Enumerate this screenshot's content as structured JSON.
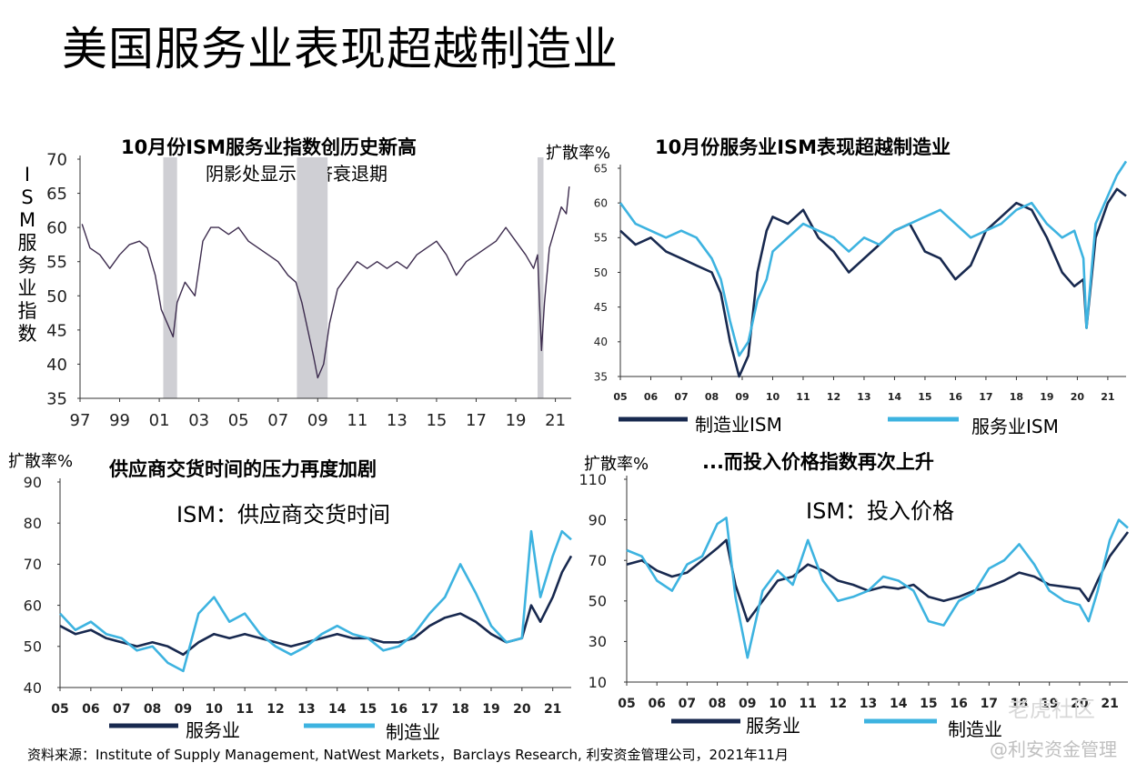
{
  "page_title": "美国服务业表现超越制造业",
  "source": "资料来源：Institute of Supply Management, NatWest Markets，Barclays Research, 利安资金管理公司，2021年11月",
  "watermark": {
    "top": "老虎社区",
    "bottom": "@利安资金管理"
  },
  "chart_data": [
    {
      "id": "c1",
      "type": "line",
      "title": "10月份ISM服务业指数创历史新高",
      "subtitle": "阴影处显示经济衰退期",
      "ylabel_chars": [
        "I",
        "S",
        "M",
        "服",
        "务",
        "业",
        "指",
        "数"
      ],
      "unit": "扩散率%",
      "ylim": [
        35,
        70
      ],
      "yticks": [
        35,
        40,
        45,
        50,
        55,
        60,
        65,
        70
      ],
      "xlim": [
        1997,
        2021.8
      ],
      "xtick_labels": [
        "97",
        "99",
        "01",
        "03",
        "05",
        "07",
        "09",
        "11",
        "13",
        "15",
        "17",
        "19",
        "21"
      ],
      "xtick_values": [
        1997,
        1999,
        2001,
        2003,
        2005,
        2007,
        2009,
        2011,
        2013,
        2015,
        2017,
        2019,
        2021
      ],
      "recessions": [
        [
          2001.2,
          2001.9
        ],
        [
          2007.95,
          2009.5
        ],
        [
          2020.1,
          2020.4
        ]
      ],
      "colors": {
        "line": "#3d2c4e",
        "shade": "#cfcfd4"
      },
      "series": [
        {
          "color": "#3d2c4e",
          "x": [
            1997.1,
            1997.5,
            1998,
            1998.5,
            1999,
            1999.5,
            2000,
            2000.4,
            2000.8,
            2001.1,
            2001.4,
            2001.7,
            2001.9,
            2002.3,
            2002.8,
            2003.2,
            2003.6,
            2004,
            2004.5,
            2005,
            2005.5,
            2006,
            2006.5,
            2007,
            2007.5,
            2007.9,
            2008.2,
            2008.5,
            2008.8,
            2009,
            2009.3,
            2009.6,
            2010,
            2010.5,
            2011,
            2011.5,
            2012,
            2012.5,
            2013,
            2013.5,
            2014,
            2014.5,
            2015,
            2015.5,
            2016,
            2016.5,
            2017,
            2017.5,
            2018,
            2018.5,
            2019,
            2019.5,
            2019.9,
            2020.1,
            2020.3,
            2020.45,
            2020.7,
            2021,
            2021.3,
            2021.55,
            2021.7
          ],
          "y": [
            60.5,
            57,
            56,
            54,
            56,
            57.5,
            58,
            57,
            53,
            48,
            46,
            44,
            49,
            52,
            50,
            58,
            60,
            60,
            59,
            60,
            58,
            57,
            56,
            55,
            53,
            52,
            49,
            45,
            41,
            38,
            40,
            46,
            51,
            53,
            55,
            54,
            55,
            54,
            55,
            54,
            56,
            57,
            58,
            56,
            53,
            55,
            56,
            57,
            58,
            60,
            58,
            56,
            54,
            56,
            42,
            49,
            57,
            60,
            63,
            62,
            66
          ]
        }
      ]
    },
    {
      "id": "c2",
      "type": "line",
      "title": "10月份服务业ISM表现超越制造业",
      "unit": "扩散率%",
      "ylim": [
        35,
        65
      ],
      "yticks": [
        35,
        40,
        45,
        50,
        55,
        60,
        65
      ],
      "xlim": [
        2005,
        2021.6
      ],
      "xtick_labels": [
        "05",
        "06",
        "07",
        "08",
        "09",
        "10",
        "11",
        "12",
        "13",
        "14",
        "15",
        "16",
        "17",
        "18",
        "19",
        "20",
        "21"
      ],
      "xtick_values": [
        2005,
        2006,
        2007,
        2008,
        2009,
        2010,
        2011,
        2012,
        2013,
        2014,
        2015,
        2016,
        2017,
        2018,
        2019,
        2020,
        2021
      ],
      "colors": {
        "manufacturing": "#18294f",
        "services": "#3db3e0"
      },
      "series": [
        {
          "name": "制造业ISM",
          "color": "#18294f",
          "x": [
            2005,
            2005.5,
            2006,
            2006.5,
            2007,
            2007.5,
            2008,
            2008.3,
            2008.6,
            2008.9,
            2009.2,
            2009.5,
            2009.8,
            2010,
            2010.5,
            2011,
            2011.5,
            2012,
            2012.5,
            2013,
            2013.5,
            2014,
            2014.5,
            2015,
            2015.5,
            2016,
            2016.5,
            2017,
            2017.5,
            2018,
            2018.5,
            2019,
            2019.5,
            2019.9,
            2020.2,
            2020.3,
            2020.6,
            2021,
            2021.3,
            2021.6
          ],
          "y": [
            56,
            54,
            55,
            53,
            52,
            51,
            50,
            47,
            40,
            35,
            38,
            50,
            56,
            58,
            57,
            59,
            55,
            53,
            50,
            52,
            54,
            56,
            57,
            53,
            52,
            49,
            51,
            56,
            58,
            60,
            59,
            55,
            50,
            48,
            49,
            42,
            55,
            60,
            62,
            61
          ]
        },
        {
          "name": "服务业ISM",
          "color": "#3db3e0",
          "x": [
            2005,
            2005.5,
            2006,
            2006.5,
            2007,
            2007.5,
            2008,
            2008.3,
            2008.6,
            2008.9,
            2009.2,
            2009.5,
            2009.8,
            2010,
            2010.5,
            2011,
            2011.5,
            2012,
            2012.5,
            2013,
            2013.5,
            2014,
            2014.5,
            2015,
            2015.5,
            2016,
            2016.5,
            2017,
            2017.5,
            2018,
            2018.5,
            2019,
            2019.5,
            2019.9,
            2020.2,
            2020.3,
            2020.6,
            2021,
            2021.3,
            2021.6
          ],
          "y": [
            60,
            57,
            56,
            55,
            56,
            55,
            52,
            49,
            43,
            38,
            40,
            46,
            49,
            53,
            55,
            57,
            56,
            55,
            53,
            55,
            54,
            56,
            57,
            58,
            59,
            57,
            55,
            56,
            57,
            59,
            60,
            57,
            55,
            56,
            52,
            42,
            57,
            61,
            64,
            66
          ]
        }
      ]
    },
    {
      "id": "c3",
      "type": "line",
      "title": "供应商交货时间的压力再度加剧",
      "subtitle": "ISM：供应商交货时间",
      "unit": "扩散率%",
      "ylim": [
        40,
        90
      ],
      "yticks": [
        40,
        50,
        60,
        70,
        80,
        90
      ],
      "xlim": [
        2005,
        2021.6
      ],
      "xtick_labels": [
        "05",
        "06",
        "07",
        "08",
        "09",
        "10",
        "11",
        "12",
        "13",
        "14",
        "15",
        "16",
        "17",
        "18",
        "19",
        "20",
        "21"
      ],
      "xtick_values": [
        2005,
        2006,
        2007,
        2008,
        2009,
        2010,
        2011,
        2012,
        2013,
        2014,
        2015,
        2016,
        2017,
        2018,
        2019,
        2020,
        2021
      ],
      "colors": {
        "services": "#18294f",
        "manufacturing": "#3db3e0"
      },
      "series": [
        {
          "name": "服务业",
          "color": "#18294f",
          "x": [
            2005,
            2005.5,
            2006,
            2006.5,
            2007,
            2007.5,
            2008,
            2008.5,
            2009,
            2009.5,
            2010,
            2010.5,
            2011,
            2011.5,
            2012,
            2012.5,
            2013,
            2013.5,
            2014,
            2014.5,
            2015,
            2015.5,
            2016,
            2016.5,
            2017,
            2017.5,
            2018,
            2018.5,
            2019,
            2019.5,
            2020,
            2020.3,
            2020.6,
            2021,
            2021.3,
            2021.6
          ],
          "y": [
            55,
            53,
            54,
            52,
            51,
            50,
            51,
            50,
            48,
            51,
            53,
            52,
            53,
            52,
            51,
            50,
            51,
            52,
            53,
            52,
            52,
            51,
            51,
            52,
            55,
            57,
            58,
            56,
            53,
            51,
            52,
            60,
            56,
            62,
            68,
            72
          ]
        },
        {
          "name": "制造业",
          "color": "#3db3e0",
          "x": [
            2005,
            2005.5,
            2006,
            2006.5,
            2007,
            2007.5,
            2008,
            2008.5,
            2009,
            2009.5,
            2010,
            2010.5,
            2011,
            2011.5,
            2012,
            2012.5,
            2013,
            2013.5,
            2014,
            2014.5,
            2015,
            2015.5,
            2016,
            2016.5,
            2017,
            2017.5,
            2018,
            2018.5,
            2019,
            2019.5,
            2020,
            2020.3,
            2020.6,
            2021,
            2021.3,
            2021.6
          ],
          "y": [
            58,
            54,
            56,
            53,
            52,
            49,
            50,
            46,
            44,
            58,
            62,
            56,
            58,
            53,
            50,
            48,
            50,
            53,
            55,
            53,
            52,
            49,
            50,
            53,
            58,
            62,
            70,
            63,
            55,
            51,
            52,
            78,
            62,
            72,
            78,
            76
          ]
        }
      ]
    },
    {
      "id": "c4",
      "type": "line",
      "title": "...而投入价格指数再次上升",
      "subtitle": "ISM：投入价格",
      "unit": "扩散率%",
      "ylim": [
        10,
        110
      ],
      "yticks": [
        10,
        30,
        50,
        70,
        90,
        110
      ],
      "xlim": [
        2005,
        2021.6
      ],
      "xtick_labels": [
        "05",
        "06",
        "07",
        "08",
        "09",
        "10",
        "11",
        "12",
        "13",
        "14",
        "15",
        "16",
        "17",
        "18",
        "19",
        "20",
        "21"
      ],
      "xtick_values": [
        2005,
        2006,
        2007,
        2008,
        2009,
        2010,
        2011,
        2012,
        2013,
        2014,
        2015,
        2016,
        2017,
        2018,
        2019,
        2020,
        2021
      ],
      "colors": {
        "services": "#18294f",
        "manufacturing": "#3db3e0"
      },
      "series": [
        {
          "name": "服务业",
          "color": "#18294f",
          "x": [
            2005,
            2005.5,
            2006,
            2006.5,
            2007,
            2007.5,
            2008,
            2008.3,
            2008.6,
            2009,
            2009.5,
            2010,
            2010.5,
            2011,
            2011.5,
            2012,
            2012.5,
            2013,
            2013.5,
            2014,
            2014.5,
            2015,
            2015.5,
            2016,
            2016.5,
            2017,
            2017.5,
            2018,
            2018.5,
            2019,
            2019.5,
            2020,
            2020.3,
            2020.6,
            2021,
            2021.3,
            2021.6
          ],
          "y": [
            68,
            70,
            65,
            62,
            64,
            70,
            76,
            80,
            58,
            40,
            50,
            60,
            62,
            68,
            65,
            60,
            58,
            55,
            57,
            56,
            58,
            52,
            50,
            52,
            55,
            57,
            60,
            64,
            62,
            58,
            57,
            56,
            50,
            60,
            72,
            78,
            84
          ]
        },
        {
          "name": "制造业",
          "color": "#3db3e0",
          "x": [
            2005,
            2005.5,
            2006,
            2006.5,
            2007,
            2007.5,
            2008,
            2008.3,
            2008.6,
            2009,
            2009.5,
            2010,
            2010.5,
            2011,
            2011.5,
            2012,
            2012.5,
            2013,
            2013.5,
            2014,
            2014.5,
            2015,
            2015.5,
            2016,
            2016.5,
            2017,
            2017.5,
            2018,
            2018.5,
            2019,
            2019.5,
            2020,
            2020.3,
            2020.6,
            2021,
            2021.3,
            2021.6
          ],
          "y": [
            75,
            72,
            60,
            55,
            68,
            72,
            88,
            91,
            52,
            22,
            55,
            65,
            58,
            80,
            60,
            50,
            52,
            55,
            62,
            60,
            55,
            40,
            38,
            50,
            54,
            66,
            70,
            78,
            68,
            55,
            50,
            48,
            40,
            55,
            80,
            90,
            86
          ]
        }
      ]
    }
  ]
}
